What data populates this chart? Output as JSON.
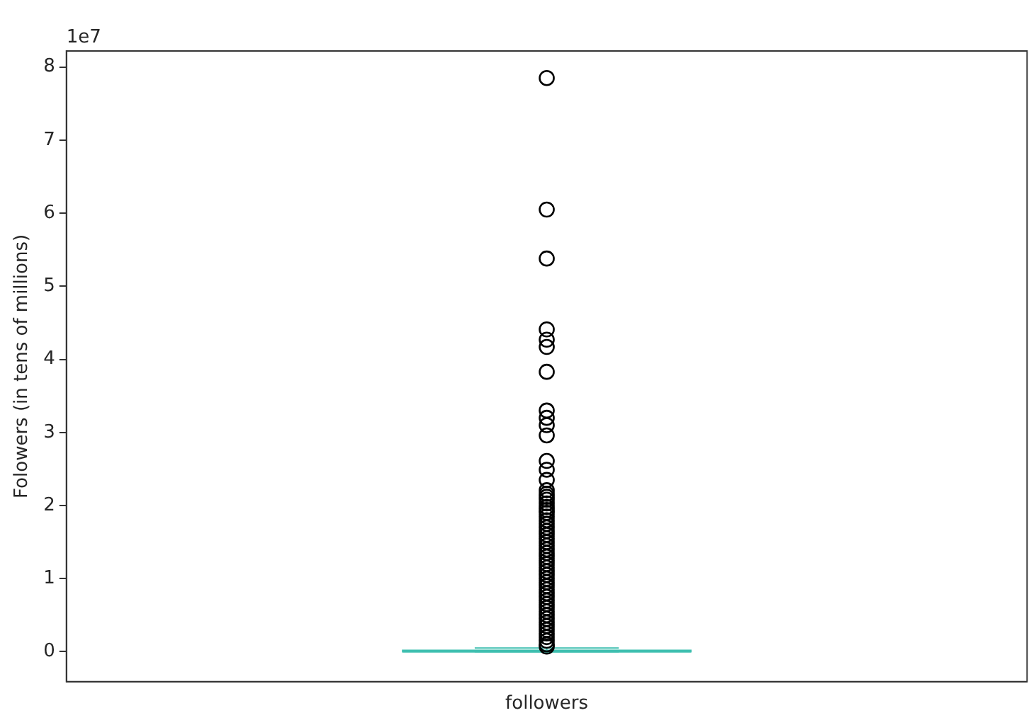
{
  "chart_data": {
    "type": "box",
    "ylabel": "Folowers (in tens of millions)",
    "annotations": [
      "1e7"
    ],
    "categories": [
      "followers"
    ],
    "ylim": [
      -0.41,
      8.22
    ],
    "yticks": [
      0,
      1,
      2,
      3,
      4,
      5,
      6,
      7,
      8
    ],
    "grid": false,
    "legend": false,
    "marker": "circle",
    "series": [
      {
        "color": "#3fbfb0",
        "boxes": [
          {
            "low": 0,
            "q1": 0,
            "median": 0.005,
            "q3": 0.02,
            "high": 0.05,
            "outliers": [
              7.85,
              6.05,
              5.38,
              4.41,
              4.27,
              4.17,
              3.83,
              3.3,
              3.2,
              3.1,
              2.96,
              2.61,
              2.49,
              2.35,
              2.21,
              2.16,
              2.12,
              2.08,
              2.03,
              1.98,
              1.94,
              1.9,
              1.85,
              1.8,
              1.75,
              1.7,
              1.65,
              1.6,
              1.55,
              1.5,
              1.45,
              1.4,
              1.35,
              1.3,
              1.25,
              1.2,
              1.15,
              1.1,
              1.05,
              1.0,
              0.95,
              0.9,
              0.85,
              0.8,
              0.75,
              0.7,
              0.65,
              0.6,
              0.55,
              0.5,
              0.45,
              0.4,
              0.35,
              0.3,
              0.25,
              0.2,
              0.15,
              0.1,
              0.07
            ]
          }
        ]
      }
    ]
  }
}
